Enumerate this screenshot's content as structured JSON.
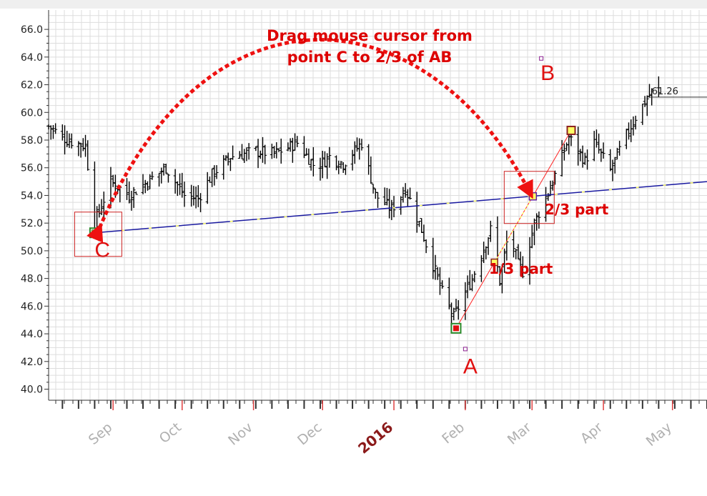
{
  "chart_data": {
    "type": "ohlc",
    "y_ticks": [
      "40.0",
      "42.0",
      "44.0",
      "46.0",
      "48.0",
      "50.0",
      "52.0",
      "54.0",
      "56.0",
      "58.0",
      "60.0",
      "62.0",
      "64.0",
      "66.0"
    ],
    "ylim": [
      39.2,
      67.4
    ],
    "x_labels": [
      {
        "label": "Sep",
        "date": "2015-09-01",
        "bold": false
      },
      {
        "label": "Oct",
        "date": "2015-10-01",
        "bold": false
      },
      {
        "label": "Nov",
        "date": "2015-11-01",
        "bold": false
      },
      {
        "label": "Dec",
        "date": "2015-12-01",
        "bold": false
      },
      {
        "label": "2016",
        "date": "2016-01-01",
        "bold": true
      },
      {
        "label": "Feb",
        "date": "2016-02-01",
        "bold": false
      },
      {
        "label": "Mar",
        "date": "2016-03-01",
        "bold": false
      },
      {
        "label": "Apr",
        "date": "2016-04-01",
        "bold": false
      },
      {
        "label": "May",
        "date": "2016-05-01",
        "bold": false
      }
    ],
    "xlim": [
      "2015-08-04",
      "2016-05-16"
    ],
    "last_price": "61.26",
    "price_path": [
      [
        "2015-08-04",
        59.0
      ],
      [
        "2015-08-12",
        58.0
      ],
      [
        "2015-08-20",
        57.6
      ],
      [
        "2015-08-24",
        52.0
      ],
      [
        "2015-08-31",
        55.0
      ],
      [
        "2015-09-08",
        54.0
      ],
      [
        "2015-09-16",
        55.0
      ],
      [
        "2015-09-24",
        56.0
      ],
      [
        "2015-10-02",
        54.0
      ],
      [
        "2015-10-08",
        53.8
      ],
      [
        "2015-10-14",
        55.5
      ],
      [
        "2015-10-22",
        56.8
      ],
      [
        "2015-11-02",
        57.2
      ],
      [
        "2015-11-10",
        57.0
      ],
      [
        "2015-11-20",
        57.8
      ],
      [
        "2015-11-28",
        56.0
      ],
      [
        "2015-12-04",
        56.8
      ],
      [
        "2015-12-10",
        56.3
      ],
      [
        "2015-12-18",
        57.8
      ],
      [
        "2015-12-24",
        54.0
      ],
      [
        "2015-12-31",
        53.0
      ],
      [
        "2016-01-06",
        54.5
      ],
      [
        "2016-01-12",
        52.0
      ],
      [
        "2016-01-16",
        50.0
      ],
      [
        "2016-01-22",
        47.0
      ],
      [
        "2016-01-27",
        45.2
      ],
      [
        "2016-02-04",
        48.0
      ],
      [
        "2016-02-12",
        51.5
      ],
      [
        "2016-02-16",
        47.8
      ],
      [
        "2016-02-20",
        51.5
      ],
      [
        "2016-02-24",
        49.0
      ],
      [
        "2016-02-26",
        48.5
      ],
      [
        "2016-03-02",
        52.0
      ],
      [
        "2016-03-10",
        55.0
      ],
      [
        "2016-03-17",
        58.2
      ],
      [
        "2016-03-24",
        56.5
      ],
      [
        "2016-03-28",
        57.8
      ],
      [
        "2016-04-04",
        55.8
      ],
      [
        "2016-04-10",
        58.0
      ],
      [
        "2016-04-16",
        60.0
      ],
      [
        "2016-04-22",
        61.5
      ],
      [
        "2016-04-25",
        61.26
      ]
    ],
    "points": [
      {
        "name": "A",
        "date": "2016-01-28",
        "price": 44.4,
        "label_date": "2016-02-01",
        "label_price": 42.9
      },
      {
        "name": "B",
        "date": "2016-03-18",
        "price": 58.7,
        "label_date": "2016-03-05",
        "label_price": 63.9
      },
      {
        "name": "C",
        "date": "2015-08-24",
        "price": 51.3
      }
    ],
    "trendline_end": {
      "date": "2016-05-16",
      "price": 55.0
    },
    "annotations": {
      "title_line1": "Drag mouse cursor from",
      "title_line2": "point C to 2/3 of AB",
      "one_third": "1/3 part",
      "two_third": "2/3 part"
    },
    "colors": {
      "bars": "#000000",
      "ab_line": "#ff2222",
      "trend_line": "#1a1aa0",
      "highlight": "#ffff66",
      "arrow": "#ee1111",
      "grid": "#dddddd",
      "x_tick_marks": "#e04040"
    }
  }
}
